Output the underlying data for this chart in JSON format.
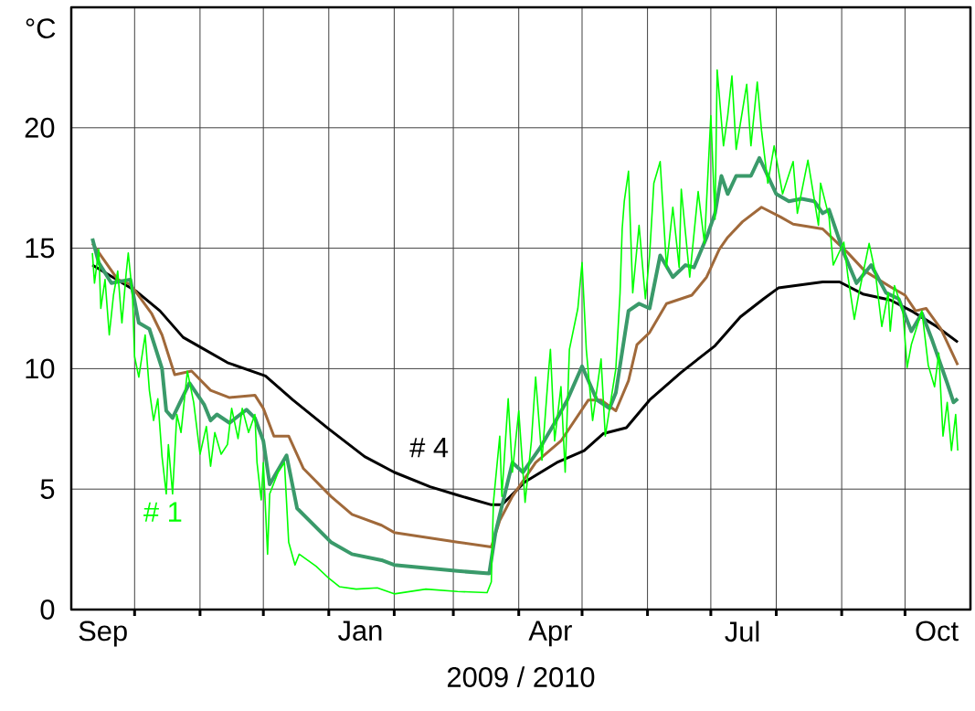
{
  "chart_data": {
    "type": "line",
    "ylabel": "°C",
    "xlabel": "2009 / 2010",
    "xlim": [
      "2009-09-01",
      "2010-11-01"
    ],
    "ylim": [
      0,
      25
    ],
    "yticks": [
      0,
      5,
      10,
      15,
      20
    ],
    "xticks": [
      {
        "value": "2009-09-16",
        "label": "Sep"
      },
      {
        "value": "2009-10-01",
        "label": null
      },
      {
        "value": "2009-11-01",
        "label": null
      },
      {
        "value": "2009-12-01",
        "label": null
      },
      {
        "value": "2010-01-01",
        "label": null
      },
      {
        "value": "2010-01-16",
        "label": "Jan"
      },
      {
        "value": "2010-02-01",
        "label": null
      },
      {
        "value": "2010-03-01",
        "label": null
      },
      {
        "value": "2010-04-01",
        "label": null
      },
      {
        "value": "2010-04-16",
        "label": "Apr"
      },
      {
        "value": "2010-05-01",
        "label": null
      },
      {
        "value": "2010-06-01",
        "label": null
      },
      {
        "value": "2010-07-01",
        "label": null
      },
      {
        "value": "2010-07-16",
        "label": "Jul"
      },
      {
        "value": "2010-08-01",
        "label": null
      },
      {
        "value": "2010-09-01",
        "label": null
      },
      {
        "value": "2010-10-01",
        "label": null
      },
      {
        "value": "2010-10-16",
        "label": "Oct"
      }
    ],
    "grid": true,
    "series": [
      {
        "name": "# 4",
        "color": "#000000",
        "x": [
          "2009-09-11",
          "2009-10-02",
          "2009-10-13",
          "2009-10-24",
          "2009-11-01",
          "2009-11-14",
          "2009-12-02",
          "2009-12-15",
          "2010-01-01",
          "2010-01-18",
          "2010-02-01",
          "2010-02-18",
          "2010-03-03",
          "2010-03-19",
          "2010-03-24",
          "2010-04-04",
          "2010-04-19",
          "2010-05-02",
          "2010-05-11",
          "2010-05-22",
          "2010-06-02",
          "2010-06-17",
          "2010-07-03",
          "2010-07-15",
          "2010-07-26",
          "2010-08-02",
          "2010-08-23",
          "2010-08-31",
          "2010-09-11",
          "2010-09-24",
          "2010-10-05",
          "2010-10-16",
          "2010-10-26"
        ],
        "values": [
          14.3,
          13.2,
          12.4,
          11.3,
          10.9,
          10.25,
          9.7,
          8.7,
          7.5,
          6.35,
          5.7,
          5.1,
          4.75,
          4.35,
          4.35,
          5.3,
          6.1,
          6.6,
          7.3,
          7.55,
          8.7,
          9.85,
          10.95,
          12.15,
          12.9,
          13.35,
          13.6,
          13.6,
          13.1,
          12.85,
          12.35,
          11.75,
          11.1
        ]
      },
      {
        "color": "#a0693a",
        "x": [
          "2009-09-11",
          "2009-09-23",
          "2009-09-29",
          "2009-10-09",
          "2009-10-14",
          "2009-10-20",
          "2009-10-28",
          "2009-11-06",
          "2009-11-15",
          "2009-11-27",
          "2009-12-01",
          "2009-12-06",
          "2009-12-13",
          "2009-12-20",
          "2010-01-02",
          "2010-01-12",
          "2010-01-26",
          "2010-02-01",
          "2010-03-03",
          "2010-03-19",
          "2010-03-23",
          "2010-03-29",
          "2010-04-09",
          "2010-04-21",
          "2010-05-04",
          "2010-05-10",
          "2010-05-17",
          "2010-05-23",
          "2010-05-27",
          "2010-06-02",
          "2010-06-10",
          "2010-06-22",
          "2010-06-29",
          "2010-07-05",
          "2010-07-09",
          "2010-07-16",
          "2010-07-25",
          "2010-08-03",
          "2010-08-09",
          "2010-08-23",
          "2010-09-04",
          "2010-09-12",
          "2010-09-24",
          "2010-10-01",
          "2010-10-06",
          "2010-10-11",
          "2010-10-18",
          "2010-10-26"
        ],
        "values": [
          15.2,
          13.7,
          13.5,
          12.3,
          11.4,
          9.75,
          9.9,
          9.1,
          8.8,
          8.9,
          8.35,
          7.2,
          7.2,
          5.85,
          4.7,
          3.95,
          3.5,
          3.2,
          2.8,
          2.6,
          3.7,
          4.7,
          6.1,
          7.0,
          8.7,
          8.7,
          8.25,
          9.5,
          11.0,
          11.5,
          12.7,
          13.05,
          13.8,
          14.95,
          15.45,
          16.1,
          16.7,
          16.3,
          16.0,
          15.8,
          14.8,
          14.05,
          13.4,
          13.05,
          12.4,
          12.5,
          11.65,
          10.15
        ]
      },
      {
        "color": "#3a9a6a",
        "x": [
          "2009-09-11",
          "2009-09-14",
          "2009-09-20",
          "2009-09-29",
          "2009-10-03",
          "2009-10-08",
          "2009-10-14",
          "2009-10-16",
          "2009-10-19",
          "2009-10-22",
          "2009-10-27",
          "2009-11-03",
          "2009-11-06",
          "2009-11-09",
          "2009-11-15",
          "2009-11-23",
          "2009-11-27",
          "2009-12-01",
          "2009-12-04",
          "2009-12-12",
          "2009-12-17",
          "2010-01-02",
          "2010-01-12",
          "2010-01-26",
          "2010-02-01",
          "2010-03-03",
          "2010-03-18",
          "2010-03-21",
          "2010-03-29",
          "2010-04-03",
          "2010-04-11",
          "2010-04-18",
          "2010-04-24",
          "2010-05-01",
          "2010-05-08",
          "2010-05-14",
          "2010-05-17",
          "2010-05-23",
          "2010-05-28",
          "2010-06-02",
          "2010-06-07",
          "2010-06-13",
          "2010-06-19",
          "2010-06-23",
          "2010-06-29",
          "2010-07-03",
          "2010-07-06",
          "2010-07-09",
          "2010-07-13",
          "2010-07-20",
          "2010-07-24",
          "2010-07-28",
          "2010-08-01",
          "2010-08-07",
          "2010-08-13",
          "2010-08-19",
          "2010-08-23",
          "2010-08-26",
          "2010-09-02",
          "2010-09-08",
          "2010-09-15",
          "2010-09-22",
          "2010-09-28",
          "2010-10-04",
          "2010-10-09",
          "2010-10-14",
          "2010-10-21",
          "2010-10-24",
          "2010-10-26"
        ],
        "values": [
          15.4,
          14.4,
          13.55,
          13.7,
          11.9,
          11.65,
          10.0,
          8.25,
          7.95,
          8.5,
          9.4,
          8.5,
          7.85,
          8.1,
          7.75,
          8.3,
          7.95,
          7.0,
          5.2,
          6.4,
          4.2,
          2.8,
          2.3,
          2.05,
          1.85,
          1.6,
          1.5,
          3.2,
          6.1,
          5.7,
          6.7,
          7.75,
          8.7,
          10.1,
          8.7,
          8.35,
          9.0,
          12.4,
          12.7,
          12.5,
          14.7,
          13.8,
          14.3,
          14.2,
          15.45,
          16.45,
          18.0,
          17.25,
          18.0,
          18.0,
          18.75,
          18.0,
          17.25,
          16.95,
          17.05,
          16.95,
          16.45,
          16.6,
          14.8,
          13.55,
          14.3,
          13.15,
          12.9,
          11.55,
          12.3,
          11.15,
          9.4,
          8.6,
          8.75
        ]
      },
      {
        "name": "# 1",
        "color": "#00ff00",
        "x": [
          "2009-09-11",
          "2009-09-12",
          "2009-09-14",
          "2009-09-15",
          "2009-09-17",
          "2009-09-19",
          "2009-09-21",
          "2009-09-23",
          "2009-09-25",
          "2009-09-27",
          "2009-09-28",
          "2009-09-30",
          "2009-10-01",
          "2009-10-03",
          "2009-10-06",
          "2009-10-08",
          "2009-10-10",
          "2009-10-12",
          "2009-10-14",
          "2009-10-16",
          "2009-10-17",
          "2009-10-19",
          "2009-10-21",
          "2009-10-23",
          "2009-10-26",
          "2009-10-29",
          "2009-11-01",
          "2009-11-04",
          "2009-11-06",
          "2009-11-08",
          "2009-11-11",
          "2009-11-14",
          "2009-11-16",
          "2009-11-19",
          "2009-11-21",
          "2009-11-24",
          "2009-11-27",
          "2009-11-28",
          "2009-11-30",
          "2009-12-01",
          "2009-12-03",
          "2009-12-04",
          "2009-12-08",
          "2009-12-11",
          "2009-12-13",
          "2009-12-16",
          "2009-12-18",
          "2009-12-26",
          "2010-01-01",
          "2010-01-06",
          "2010-01-14",
          "2010-01-24",
          "2010-02-01",
          "2010-02-16",
          "2010-03-03",
          "2010-03-17",
          "2010-03-19",
          "2010-03-20",
          "2010-03-23",
          "2010-03-24",
          "2010-03-27",
          "2010-03-29",
          "2010-04-01",
          "2010-04-04",
          "2010-04-07",
          "2010-04-09",
          "2010-04-12",
          "2010-04-15",
          "2010-04-16",
          "2010-04-18",
          "2010-04-21",
          "2010-04-23",
          "2010-04-25",
          "2010-04-29",
          "2010-05-01",
          "2010-05-03",
          "2010-05-06",
          "2010-05-10",
          "2010-05-12",
          "2010-05-17",
          "2010-05-19",
          "2010-05-20",
          "2010-05-21",
          "2010-05-23",
          "2010-05-25",
          "2010-05-28",
          "2010-05-31",
          "2010-06-02",
          "2010-06-04",
          "2010-06-07",
          "2010-06-10",
          "2010-06-13",
          "2010-06-16",
          "2010-06-17",
          "2010-06-21",
          "2010-06-25",
          "2010-06-28",
          "2010-07-01",
          "2010-07-03",
          "2010-07-04",
          "2010-07-07",
          "2010-07-09",
          "2010-07-11",
          "2010-07-13",
          "2010-07-18",
          "2010-07-20",
          "2010-07-23",
          "2010-07-25",
          "2010-07-28",
          "2010-07-31",
          "2010-08-04",
          "2010-08-09",
          "2010-08-11",
          "2010-08-16",
          "2010-08-21",
          "2010-08-22",
          "2010-08-26",
          "2010-08-28",
          "2010-09-02",
          "2010-09-04",
          "2010-09-07",
          "2010-09-09",
          "2010-09-14",
          "2010-09-17",
          "2010-09-20",
          "2010-09-23",
          "2010-09-24",
          "2010-09-26",
          "2010-09-30",
          "2010-10-02",
          "2010-10-04",
          "2010-10-09",
          "2010-10-12",
          "2010-10-15",
          "2010-10-17",
          "2010-10-19",
          "2010-10-21",
          "2010-10-23",
          "2010-10-25",
          "2010-10-26"
        ],
        "values": [
          14.8,
          13.55,
          14.95,
          12.5,
          13.7,
          11.4,
          13.05,
          14.05,
          11.9,
          13.95,
          14.8,
          13.05,
          10.5,
          9.65,
          11.4,
          9.1,
          7.85,
          8.75,
          6.35,
          4.8,
          6.85,
          4.8,
          8.1,
          7.35,
          9.9,
          8.6,
          6.45,
          7.6,
          5.95,
          7.35,
          6.45,
          6.85,
          8.35,
          7.1,
          8.35,
          7.35,
          8.1,
          6.1,
          4.55,
          6.1,
          2.3,
          4.8,
          5.7,
          6.1,
          2.8,
          1.85,
          2.3,
          1.8,
          1.3,
          0.95,
          0.85,
          0.9,
          0.65,
          0.85,
          0.75,
          0.7,
          1.15,
          4.45,
          7.2,
          4.7,
          8.75,
          5.7,
          8.25,
          4.45,
          7.0,
          9.65,
          6.2,
          9.75,
          10.8,
          7.0,
          9.25,
          5.7,
          10.8,
          12.5,
          14.4,
          10.8,
          7.85,
          10.4,
          7.2,
          10.0,
          13.15,
          15.8,
          16.95,
          18.2,
          13.15,
          15.95,
          12.9,
          14.7,
          17.7,
          18.6,
          14.2,
          16.7,
          14.2,
          17.45,
          13.8,
          17.35,
          15.2,
          20.5,
          16.2,
          22.4,
          19.25,
          20.5,
          22.15,
          19.1,
          21.8,
          19.25,
          21.9,
          19.9,
          17.7,
          19.25,
          17.25,
          18.6,
          16.45,
          18.65,
          15.95,
          17.7,
          16.3,
          14.3,
          15.25,
          13.8,
          12.05,
          13.05,
          15.2,
          13.95,
          11.75,
          13.15,
          11.55,
          13.45,
          12.4,
          10.05,
          11.0,
          12.4,
          10.15,
          9.25,
          10.65,
          7.2,
          8.6,
          6.6,
          8.1,
          6.6
        ]
      }
    ]
  }
}
